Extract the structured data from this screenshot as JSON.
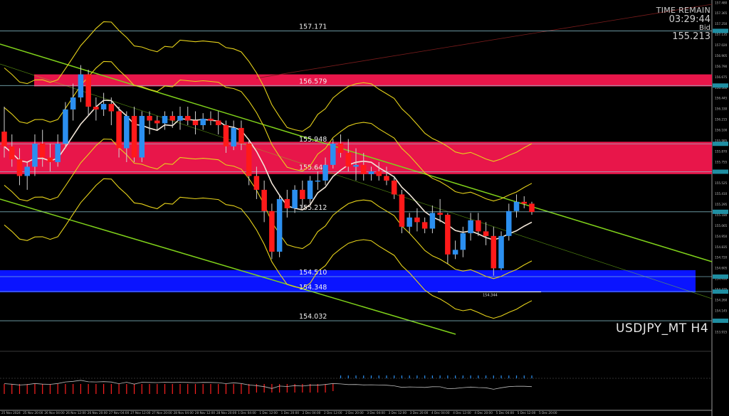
{
  "hud": {
    "timer_label": "TIME REMAIN",
    "timer_value": "03:29:44",
    "bid_label": "Bid",
    "bid_value": "155.213"
  },
  "symbol_label": "USDJPY_MT H4",
  "colors": {
    "background": "#000000",
    "bull": "#2b8ff0",
    "bear": "#ff1a1a",
    "supply_zone": "#e8164a",
    "demand_zone": "#0a14ff",
    "level_line": "#8ec9d6",
    "channel": "#7fd11a",
    "envelope": "#e6d21a",
    "ma": "#f2e6d8"
  },
  "chart_data": {
    "type": "candlestick",
    "title": "USDJPY_MT H4",
    "ylim": [
      153.84,
      157.49
    ],
    "y_ticks": [
      "157.480",
      "157.365",
      "157.250",
      "157.135",
      "157.020",
      "156.905",
      "156.790",
      "156.675",
      "156.560",
      "156.445",
      "156.330",
      "156.215",
      "156.100",
      "155.985",
      "155.870",
      "155.755",
      "155.640",
      "155.525",
      "155.410",
      "155.295",
      "155.180",
      "155.065",
      "154.950",
      "154.835",
      "154.720",
      "154.605",
      "154.490",
      "154.375",
      "154.260",
      "154.145",
      "154.030",
      "153.915"
    ],
    "x_ticks": [
      "25 Nov 2024",
      "25 Nov 20:00",
      "26 Nov 04:00",
      "26 Nov 12:00",
      "26 Nov 20:00",
      "27 Nov 04:00",
      "27 Nov 12:00",
      "27 Nov 20:00",
      "28 Nov 04:00",
      "28 Nov 12:00",
      "28 Nov 20:00",
      "1 Dec 04:00",
      "1 Dec 12:00",
      "1 Dec 20:00",
      "2 Dec 04:00",
      "2 Dec 12:00",
      "2 Dec 20:00",
      "3 Dec 04:00",
      "3 Dec 12:00",
      "3 Dec 20:00",
      "4 Dec 04:00",
      "4 Dec 12:00",
      "4 Dec 20:00",
      "5 Dec 04:00",
      "5 Dec 12:00",
      "5 Dec 20:00"
    ],
    "levels": [
      {
        "label": "157.171",
        "value": 157.171
      },
      {
        "label": "156.579",
        "value": 156.579
      },
      {
        "label": "155.948",
        "value": 155.948
      },
      {
        "label": "155.646",
        "value": 155.646
      },
      {
        "label": "155.212",
        "value": 155.212
      },
      {
        "label": "154.510",
        "value": 154.51
      },
      {
        "label": "154.348",
        "value": 154.348
      },
      {
        "label": "154.032",
        "value": 154.032
      }
    ],
    "small_label": "154.344",
    "zones": [
      {
        "name": "supply-upper",
        "from": 156.57,
        "to": 156.7
      },
      {
        "name": "supply-lower",
        "from": 155.62,
        "to": 155.97
      },
      {
        "name": "demand",
        "from": 154.34,
        "to": 154.58
      }
    ],
    "candles": [
      [
        156.08,
        155.92,
        156.35,
        155.8
      ],
      [
        155.92,
        155.78,
        156.05,
        155.7
      ],
      [
        155.78,
        155.6,
        155.9,
        155.5
      ],
      [
        155.6,
        155.7,
        155.75,
        155.45
      ],
      [
        155.7,
        155.95,
        156.05,
        155.6
      ],
      [
        155.95,
        155.8,
        156.1,
        155.7
      ],
      [
        155.8,
        155.75,
        155.95,
        155.65
      ],
      [
        155.75,
        155.95,
        156.05,
        155.7
      ],
      [
        155.95,
        156.32,
        156.4,
        155.9
      ],
      [
        156.32,
        156.45,
        156.6,
        156.2
      ],
      [
        156.45,
        156.7,
        156.8,
        156.4
      ],
      [
        156.7,
        156.35,
        156.75,
        156.25
      ],
      [
        156.35,
        156.32,
        156.45,
        156.2
      ],
      [
        156.32,
        156.38,
        156.5,
        156.25
      ],
      [
        156.38,
        156.3,
        156.45,
        156.15
      ],
      [
        156.3,
        155.9,
        156.35,
        155.8
      ],
      [
        155.9,
        156.25,
        156.3,
        155.75
      ],
      [
        156.25,
        155.8,
        156.35,
        155.75
      ],
      [
        155.8,
        156.25,
        156.3,
        155.75
      ],
      [
        156.25,
        156.2,
        156.3,
        156.05
      ],
      [
        156.2,
        156.17,
        156.25,
        156.1
      ],
      [
        156.17,
        156.25,
        156.3,
        156.1
      ],
      [
        156.25,
        156.2,
        156.3,
        156.12
      ],
      [
        156.2,
        156.25,
        156.35,
        156.1
      ],
      [
        156.25,
        156.2,
        156.35,
        156.15
      ],
      [
        156.2,
        156.15,
        156.3,
        156.05
      ],
      [
        156.15,
        156.22,
        156.28,
        156.1
      ],
      [
        156.22,
        156.2,
        156.3,
        156.15
      ],
      [
        156.2,
        156.15,
        156.3,
        156.05
      ],
      [
        156.15,
        155.92,
        156.2,
        155.85
      ],
      [
        155.92,
        156.12,
        156.2,
        155.88
      ],
      [
        156.12,
        155.95,
        156.2,
        155.88
      ],
      [
        155.95,
        155.6,
        156.0,
        155.5
      ],
      [
        155.6,
        155.45,
        155.7,
        155.35
      ],
      [
        155.45,
        155.22,
        155.55,
        155.1
      ],
      [
        155.22,
        154.78,
        155.3,
        154.7
      ],
      [
        154.78,
        155.35,
        155.4,
        154.72
      ],
      [
        155.35,
        155.25,
        155.45,
        155.15
      ],
      [
        155.25,
        155.45,
        155.5,
        155.2
      ],
      [
        155.45,
        155.35,
        155.55,
        155.25
      ],
      [
        155.35,
        155.55,
        155.6,
        155.3
      ],
      [
        155.55,
        155.55,
        155.65,
        155.45
      ],
      [
        155.55,
        155.72,
        155.8,
        155.5
      ],
      [
        155.72,
        155.95,
        156.0,
        155.68
      ],
      [
        155.95,
        155.85,
        156.05,
        155.8
      ],
      [
        155.85,
        155.7,
        156.0,
        155.65
      ],
      [
        155.7,
        155.72,
        155.9,
        155.55
      ],
      [
        155.72,
        155.62,
        155.85,
        155.55
      ],
      [
        155.62,
        155.65,
        155.7,
        155.55
      ],
      [
        155.65,
        155.6,
        155.75,
        155.55
      ],
      [
        155.6,
        155.55,
        155.7,
        155.5
      ],
      [
        155.55,
        155.4,
        155.6,
        155.35
      ],
      [
        155.4,
        155.05,
        155.45,
        154.98
      ],
      [
        155.05,
        155.15,
        155.2,
        154.98
      ],
      [
        155.15,
        155.1,
        155.25,
        155.0
      ],
      [
        155.1,
        155.03,
        155.15,
        154.98
      ],
      [
        155.03,
        155.2,
        155.28,
        154.98
      ],
      [
        155.2,
        155.18,
        155.35,
        155.1
      ],
      [
        155.18,
        154.75,
        155.2,
        154.65
      ],
      [
        154.75,
        154.8,
        154.9,
        154.7
      ],
      [
        154.8,
        154.98,
        155.05,
        154.72
      ],
      [
        154.98,
        155.12,
        155.2,
        154.9
      ],
      [
        155.12,
        155.0,
        155.2,
        154.95
      ],
      [
        155.0,
        154.95,
        155.1,
        154.85
      ],
      [
        154.95,
        154.6,
        155.05,
        154.52
      ],
      [
        154.6,
        154.95,
        155.0,
        154.58
      ],
      [
        154.95,
        155.22,
        155.3,
        154.9
      ],
      [
        155.22,
        155.32,
        155.4,
        155.15
      ],
      [
        155.32,
        155.3,
        155.38,
        155.25
      ],
      [
        155.3,
        155.21,
        155.32,
        155.18
      ]
    ],
    "indicator": {
      "zero_level": 0,
      "series_hist": [
        -0.7,
        -0.7,
        -0.7,
        -0.7,
        -0.7,
        -0.7,
        -0.7,
        -0.7,
        -0.7,
        -0.7,
        -0.7,
        -0.7,
        -0.7,
        -0.7,
        -0.7,
        -0.7,
        -0.7,
        -0.7,
        -0.7,
        -0.7,
        -0.7,
        -0.7,
        -0.7,
        -0.7,
        -0.7,
        -0.7,
        -0.7,
        -0.7,
        -0.7,
        -0.7,
        -0.7,
        -0.7,
        -0.7,
        -0.6,
        -0.6,
        -0.6,
        -0.6,
        -0.6,
        -0.6,
        -0.6,
        -0.6,
        -0.6,
        -0.6,
        -0.5,
        0.2,
        0.2,
        0.2,
        0.2,
        0.2,
        0.2,
        0.2,
        0.2,
        0.2,
        0.2,
        0.2,
        0.2,
        0.2,
        0.2,
        0.2,
        0.2,
        0.2,
        0.2,
        0.2,
        0.2,
        0.2,
        0.2,
        0.2,
        0.2,
        0.2,
        0.2
      ]
    }
  }
}
